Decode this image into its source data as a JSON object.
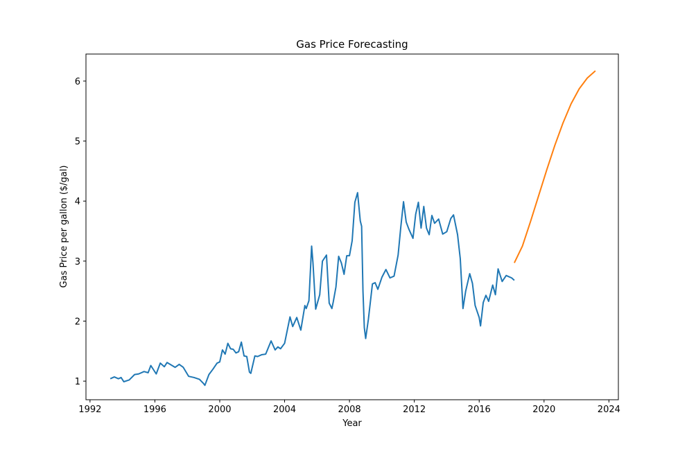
{
  "chart_data": {
    "type": "line",
    "title": "Gas Price Forecasting",
    "xlabel": "Year",
    "ylabel": "Gas Price per gallon ($/gal)",
    "xlim": [
      "1991-10-01",
      "2024-08-01"
    ],
    "ylim": [
      0.69,
      6.45
    ],
    "x_ticks": [
      {
        "value": "1992-01-01",
        "label": "1992"
      },
      {
        "value": "1996-01-01",
        "label": "1996"
      },
      {
        "value": "2000-01-01",
        "label": "2000"
      },
      {
        "value": "2004-01-01",
        "label": "2004"
      },
      {
        "value": "2008-01-01",
        "label": "2008"
      },
      {
        "value": "2012-01-01",
        "label": "2012"
      },
      {
        "value": "2016-01-01",
        "label": "2016"
      },
      {
        "value": "2020-01-01",
        "label": "2020"
      },
      {
        "value": "2024-01-01",
        "label": "2024"
      }
    ],
    "y_ticks": [
      {
        "value": 1,
        "label": "1"
      },
      {
        "value": 2,
        "label": "2"
      },
      {
        "value": 3,
        "label": "3"
      },
      {
        "value": 4,
        "label": "4"
      },
      {
        "value": 5,
        "label": "5"
      },
      {
        "value": 6,
        "label": "6"
      }
    ],
    "grid": false,
    "legend": null,
    "series": [
      {
        "color": "#1f77b4",
        "x": [
          "1993-04-01",
          "1993-07-01",
          "1993-10-01",
          "1993-12-01",
          "1994-02-01",
          "1994-06-01",
          "1994-10-01",
          "1995-01-01",
          "1995-05-01",
          "1995-08-01",
          "1995-10-01",
          "1996-02-01",
          "1996-05-01",
          "1996-08-01",
          "1996-10-01",
          "1997-01-01",
          "1997-04-01",
          "1997-07-01",
          "1997-10-01",
          "1998-02-01",
          "1998-06-01",
          "1998-10-01",
          "1999-01-01",
          "1999-02-01",
          "1999-05-01",
          "1999-08-01",
          "1999-11-01",
          "2000-01-01",
          "2000-03-01",
          "2000-05-01",
          "2000-07-01",
          "2000-09-01",
          "2000-11-01",
          "2001-01-01",
          "2001-03-01",
          "2001-05-01",
          "2001-07-01",
          "2001-09-01",
          "2001-11-01",
          "2001-12-01",
          "2002-03-01",
          "2002-05-01",
          "2002-08-01",
          "2002-11-01",
          "2003-03-01",
          "2003-06-01",
          "2003-08-01",
          "2003-10-01",
          "2004-01-01",
          "2004-05-01",
          "2004-07-01",
          "2004-10-01",
          "2005-01-01",
          "2005-04-01",
          "2005-05-01",
          "2005-07-01",
          "2005-09-01",
          "2005-10-01",
          "2005-12-01",
          "2006-03-01",
          "2006-05-01",
          "2006-08-01",
          "2006-10-01",
          "2006-12-01",
          "2007-01-01",
          "2007-03-01",
          "2007-05-01",
          "2007-07-01",
          "2007-09-01",
          "2007-11-01",
          "2008-01-01",
          "2008-03-01",
          "2008-05-01",
          "2008-07-01",
          "2008-09-01",
          "2008-10-01",
          "2008-11-01",
          "2008-12-01",
          "2009-01-01",
          "2009-03-01",
          "2009-06-01",
          "2009-08-01",
          "2009-10-01",
          "2010-01-01",
          "2010-04-01",
          "2010-07-01",
          "2010-10-01",
          "2011-01-01",
          "2011-03-01",
          "2011-05-01",
          "2011-07-01",
          "2011-09-01",
          "2011-12-01",
          "2012-02-01",
          "2012-04-01",
          "2012-06-01",
          "2012-08-01",
          "2012-10-01",
          "2012-12-01",
          "2013-02-01",
          "2013-04-01",
          "2013-07-01",
          "2013-10-01",
          "2014-01-01",
          "2014-04-01",
          "2014-06-01",
          "2014-09-01",
          "2014-11-01",
          "2015-01-01",
          "2015-03-01",
          "2015-06-01",
          "2015-08-01",
          "2015-10-01",
          "2016-01-01",
          "2016-02-01",
          "2016-04-01",
          "2016-06-01",
          "2016-08-01",
          "2016-11-01",
          "2017-01-01",
          "2017-03-01",
          "2017-06-01",
          "2017-09-01",
          "2017-11-01",
          "2018-01-01",
          "2018-03-01"
        ],
        "y": [
          1.04,
          1.07,
          1.04,
          1.06,
          0.99,
          1.02,
          1.11,
          1.12,
          1.16,
          1.14,
          1.26,
          1.12,
          1.3,
          1.24,
          1.31,
          1.27,
          1.23,
          1.28,
          1.23,
          1.08,
          1.06,
          1.03,
          0.96,
          0.93,
          1.11,
          1.2,
          1.3,
          1.32,
          1.52,
          1.45,
          1.63,
          1.54,
          1.53,
          1.47,
          1.49,
          1.65,
          1.42,
          1.41,
          1.15,
          1.13,
          1.42,
          1.41,
          1.44,
          1.45,
          1.67,
          1.52,
          1.57,
          1.54,
          1.63,
          2.07,
          1.91,
          2.06,
          1.85,
          2.26,
          2.21,
          2.34,
          3.25,
          2.97,
          2.2,
          2.44,
          3.0,
          3.1,
          2.3,
          2.21,
          2.32,
          2.57,
          3.08,
          2.97,
          2.78,
          3.09,
          3.09,
          3.34,
          3.98,
          4.14,
          3.67,
          3.58,
          2.5,
          1.89,
          1.71,
          2.03,
          2.62,
          2.64,
          2.53,
          2.73,
          2.86,
          2.72,
          2.75,
          3.1,
          3.57,
          3.99,
          3.65,
          3.53,
          3.38,
          3.78,
          3.98,
          3.55,
          3.91,
          3.55,
          3.44,
          3.76,
          3.63,
          3.7,
          3.45,
          3.49,
          3.71,
          3.77,
          3.44,
          3.04,
          2.21,
          2.5,
          2.79,
          2.63,
          2.26,
          2.06,
          1.92,
          2.31,
          2.43,
          2.33,
          2.6,
          2.44,
          2.87,
          2.66,
          2.76,
          2.74,
          2.72,
          2.68
        ]
      },
      {
        "color": "#ff7f0e",
        "x": [
          "2018-03-01",
          "2018-09-01",
          "2019-03-01",
          "2019-09-01",
          "2020-03-01",
          "2020-09-01",
          "2021-03-01",
          "2021-09-01",
          "2022-03-01",
          "2022-09-01",
          "2023-03-01"
        ],
        "y": [
          2.97,
          3.25,
          3.66,
          4.09,
          4.52,
          4.93,
          5.3,
          5.62,
          5.87,
          6.05,
          6.17
        ]
      }
    ]
  }
}
